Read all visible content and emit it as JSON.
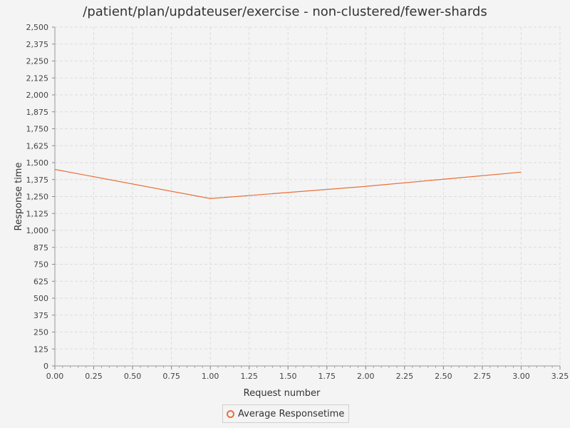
{
  "chart_data": {
    "type": "line",
    "title": "/patient/plan/updateuser/exercise - non-clustered/fewer-shards",
    "xlabel": "Request number",
    "ylabel": "Response time",
    "xlim": [
      0,
      3.25
    ],
    "ylim": [
      0,
      2500
    ],
    "xticks": [
      0,
      0.25,
      0.5,
      0.75,
      1.0,
      1.25,
      1.5,
      1.75,
      2.0,
      2.25,
      2.5,
      2.75,
      3.0,
      3.25
    ],
    "xtick_labels": [
      "0.00",
      "0.25",
      "0.50",
      "0.75",
      "1.00",
      "1.25",
      "1.50",
      "1.75",
      "2.00",
      "2.25",
      "2.50",
      "2.75",
      "3.00",
      "3.25"
    ],
    "yticks": [
      0,
      125,
      250,
      375,
      500,
      625,
      750,
      875,
      1000,
      1125,
      1250,
      1375,
      1500,
      1625,
      1750,
      1875,
      2000,
      2125,
      2250,
      2375,
      2500
    ],
    "ytick_labels": [
      "0",
      "125",
      "250",
      "375",
      "500",
      "625",
      "750",
      "875",
      "1,000",
      "1,125",
      "1,250",
      "1,375",
      "1,500",
      "1,625",
      "1,750",
      "1,875",
      "2,000",
      "2,125",
      "2,250",
      "2,375",
      "2,500"
    ],
    "grid": true,
    "legend_position": "bottom",
    "series": [
      {
        "name": "Average Responsetime",
        "color": "#e8703a",
        "x": [
          0,
          1,
          2,
          3
        ],
        "y": [
          1450,
          1235,
          1325,
          1430
        ]
      }
    ]
  }
}
